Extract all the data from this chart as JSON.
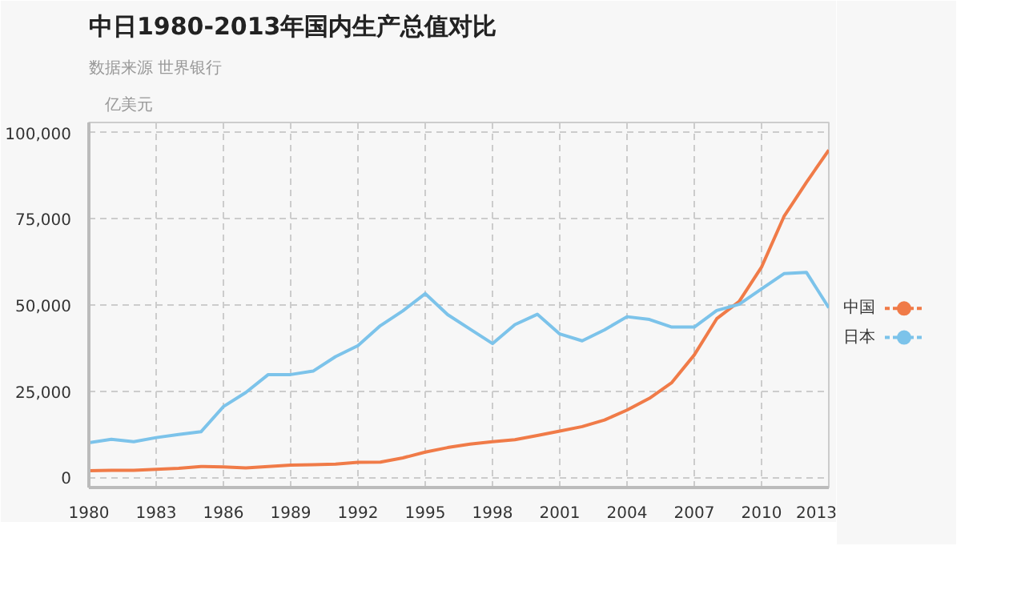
{
  "chart_data": {
    "type": "line",
    "title": "中日1980-2013年国内生产总值对比",
    "subtitle": "数据来源 世界银行",
    "ylabel": "亿美元",
    "x": [
      1980,
      1981,
      1982,
      1983,
      1984,
      1985,
      1986,
      1987,
      1988,
      1989,
      1990,
      1991,
      1992,
      1993,
      1994,
      1995,
      1996,
      1997,
      1998,
      1999,
      2000,
      2001,
      2002,
      2003,
      2004,
      2005,
      2006,
      2007,
      2008,
      2009,
      2010,
      2011,
      2012,
      2013
    ],
    "series": [
      {
        "name": "中国",
        "color": "#f07b48",
        "values": [
          1900,
          2000,
          2000,
          2300,
          2600,
          3100,
          3000,
          2700,
          3100,
          3500,
          3600,
          3800,
          4300,
          4400,
          5600,
          7300,
          8600,
          9600,
          10300,
          10900,
          12100,
          13400,
          14700,
          16600,
          19500,
          22900,
          27500,
          35500,
          46000,
          51000,
          61000,
          75700,
          85600,
          95000
        ]
      },
      {
        "name": "日本",
        "color": "#7cc3ea",
        "values": [
          10000,
          11000,
          10300,
          11500,
          12400,
          13200,
          20500,
          24600,
          29800,
          29800,
          30800,
          35000,
          38200,
          44000,
          48300,
          53300,
          47200,
          43000,
          38800,
          44300,
          47300,
          41600,
          39600,
          42800,
          46600,
          45800,
          43600,
          43600,
          48400,
          50200,
          54700,
          59100,
          59500,
          49200
        ]
      }
    ],
    "xlim": [
      1980,
      2013
    ],
    "ylim": [
      -3000,
      103000
    ],
    "xticks": [
      1980,
      1983,
      1986,
      1989,
      1992,
      1995,
      1998,
      2001,
      2004,
      2007,
      2010,
      2013
    ],
    "yticks": [
      {
        "value": 0,
        "label": "0"
      },
      {
        "value": 25000,
        "label": "25,000"
      },
      {
        "value": 50000,
        "label": "50,000"
      },
      {
        "value": 75000,
        "label": "75,000"
      },
      {
        "value": 100000,
        "label": "100,000"
      }
    ],
    "grid": true,
    "legend": "right",
    "line_style": "solid"
  }
}
